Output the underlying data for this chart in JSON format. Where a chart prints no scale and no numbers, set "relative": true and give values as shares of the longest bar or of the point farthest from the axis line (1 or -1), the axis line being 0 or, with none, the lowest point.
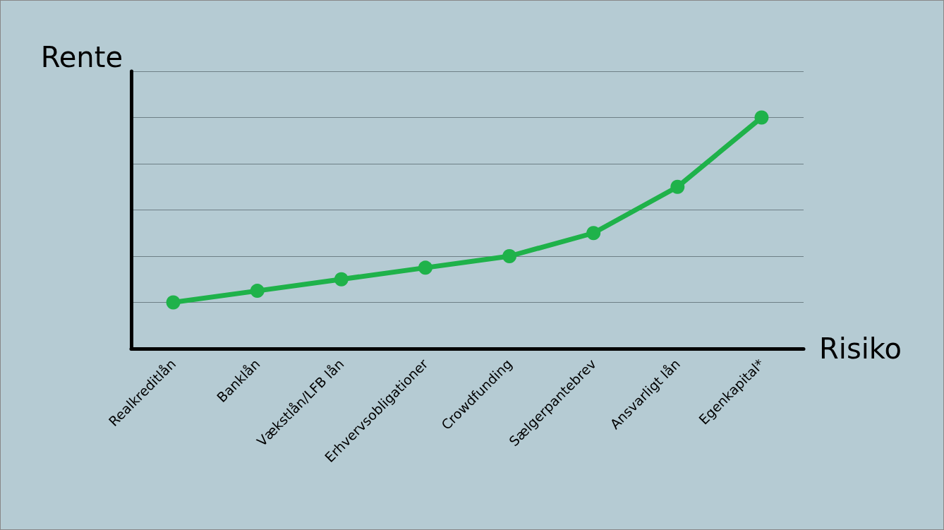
{
  "chart_data": {
    "type": "line",
    "relative": true,
    "xlabel": "Risiko",
    "ylabel": "Rente",
    "categories": [
      "Realkreditlån",
      "Banklån",
      "Vækstlån/LFB lån",
      "Erhvervsobligationer",
      "Crowdfunding",
      "Sælgerpantebrev",
      "Ansvarligt lån",
      "Egenkapital*"
    ],
    "series": [
      {
        "color": "#1fb24a",
        "values": [
          0.2,
          0.25,
          0.3,
          0.35,
          0.4,
          0.5,
          0.7,
          1.0
        ]
      }
    ],
    "grid": "y",
    "marker": "circle",
    "line_style": "solid"
  }
}
